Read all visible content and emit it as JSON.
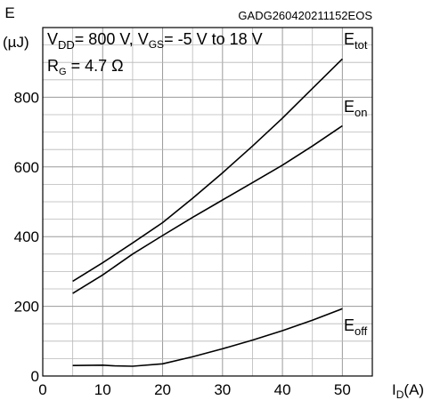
{
  "chart_data": {
    "type": "line",
    "figure_id": "GADG260420211152EOS",
    "conditions": {
      "line1": [
        "V",
        "DD",
        "= 800 V, V",
        "GS",
        "= -5 V to 18 V"
      ],
      "line2": [
        "R",
        "G",
        " = 4.7 Ω"
      ]
    },
    "ylabel": "E",
    "yunit": "(µJ)",
    "xlabel_main": "I",
    "xlabel_sub": "D",
    "xlabel_unit": "(A)",
    "xlim": [
      0,
      55
    ],
    "ylim": [
      0,
      1000
    ],
    "xticks": [
      "0",
      "10",
      "20",
      "30",
      "40",
      "50"
    ],
    "yticks": [
      "0",
      "200",
      "400",
      "600",
      "800"
    ],
    "grid": true,
    "series": [
      {
        "name": "E",
        "name_sub": "tot",
        "x": [
          5,
          10,
          15,
          20,
          25,
          30,
          35,
          40,
          45,
          50
        ],
        "values": [
          272,
          325,
          382,
          440,
          510,
          583,
          660,
          740,
          825,
          910
        ]
      },
      {
        "name": "E",
        "name_sub": "on",
        "x": [
          5,
          10,
          15,
          20,
          25,
          30,
          35,
          40,
          45,
          50
        ],
        "values": [
          237,
          290,
          350,
          403,
          455,
          505,
          555,
          605,
          660,
          718
        ]
      },
      {
        "name": "E",
        "name_sub": "off",
        "x": [
          5,
          10,
          12,
          15,
          20,
          25,
          30,
          35,
          40,
          45,
          50
        ],
        "values": [
          30,
          31,
          29,
          28,
          35,
          55,
          78,
          103,
          130,
          160,
          193
        ]
      }
    ]
  }
}
